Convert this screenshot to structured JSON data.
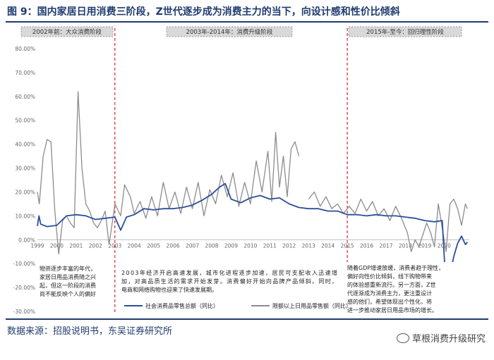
{
  "title": "图 9：国内家居日用消费三阶段，Z世代逐步成为消费主力的当下，向设计感和性价比倾斜",
  "source": "数据来源：招股说明书，东吴证券研究所",
  "watermark": "草根消费升级研究",
  "colors": {
    "title": "#1f3b6f",
    "series_retail": "#2a4f9a",
    "series_household": "#8c8c8c",
    "divider": "#d9262a",
    "stage_box": "#d9d9d9"
  },
  "stages": [
    {
      "label": "2002年前：大众消费阶段"
    },
    {
      "label": "2003年-2014年：消费升级阶段"
    },
    {
      "label": "2015年-至今：回归理性阶段"
    }
  ],
  "annotations": [
    {
      "lines": [
        "物资逐步丰富的年代，",
        "家居日用品消费随之兴",
        "起，但这一阶段的消费",
        "尚不能反映个人的偏好"
      ]
    },
    {
      "lines": [
        "2003年经济开启高速发展，城市化进程逐步加速，居民可支配收入迅速增",
        "加，对高品质生活的需求开始发芽。消费偏好开始向品牌产品倾斜。同时，",
        "电商和网络购物也迎来了快速发展期。"
      ]
    },
    {
      "lines": [
        "随着GDP增速放缓，消费者趋于理性，",
        "偏好向性价比倾斜，线下购物带来",
        "的体验感重新流行。另一方面，Z世",
        "代逐渐成为消费主力，更注重设计",
        "感的他们，希望体现出个性化，将",
        "进一步推动家居日用品市场的增长。"
      ]
    }
  ],
  "chart_data": {
    "type": "line",
    "ylim": [
      -30,
      80
    ],
    "yticks": [
      "80.00%",
      "70.00%",
      "60.00%",
      "50.00%",
      "40.00%",
      "30.00%",
      "20.00%",
      "10.00%",
      "0.00%",
      "-10.00%",
      "-20.00%",
      "-30.00%"
    ],
    "xlim": [
      1999,
      2021.3
    ],
    "xticks": [
      "1999",
      "2000",
      "2001",
      "2002",
      "2003",
      "2004",
      "2005",
      "2006",
      "2007",
      "2008",
      "2009",
      "2010",
      "2011",
      "2012",
      "2013",
      "2014",
      "2015",
      "2016",
      "2017",
      "2018",
      "2019",
      "2020"
    ],
    "dividers_x": [
      2003,
      2015
    ],
    "series": [
      {
        "name": "社会消费品零售总额（同比）",
        "points": [
          [
            1999.0,
            5.7
          ],
          [
            1999.08,
            10.0
          ],
          [
            1999.17,
            6.5
          ],
          [
            1999.5,
            5.5
          ],
          [
            2000.0,
            6.0
          ],
          [
            2000.5,
            10.0
          ],
          [
            2001.0,
            10.5
          ],
          [
            2001.5,
            10.0
          ],
          [
            2002.0,
            8.5
          ],
          [
            2002.5,
            9.0
          ],
          [
            2003.0,
            9.5
          ],
          [
            2003.3,
            4.0
          ],
          [
            2003.6,
            9.5
          ],
          [
            2004.0,
            10.5
          ],
          [
            2004.5,
            13.0
          ],
          [
            2005.0,
            12.5
          ],
          [
            2005.5,
            13.0
          ],
          [
            2006.0,
            13.0
          ],
          [
            2006.5,
            13.5
          ],
          [
            2007.0,
            14.5
          ],
          [
            2007.5,
            16.5
          ],
          [
            2008.0,
            19.0
          ],
          [
            2008.4,
            22.0
          ],
          [
            2008.7,
            23.5
          ],
          [
            2009.0,
            17.0
          ],
          [
            2009.5,
            15.5
          ],
          [
            2010.0,
            17.5
          ],
          [
            2010.5,
            18.5
          ],
          [
            2011.0,
            17.0
          ],
          [
            2011.5,
            17.5
          ],
          [
            2012.0,
            15.0
          ],
          [
            2012.5,
            13.5
          ],
          [
            2013.0,
            13.0
          ],
          [
            2013.5,
            13.0
          ],
          [
            2014.0,
            12.0
          ],
          [
            2014.5,
            12.0
          ],
          [
            2015.0,
            10.5
          ],
          [
            2015.5,
            10.5
          ],
          [
            2016.0,
            10.0
          ],
          [
            2016.5,
            10.5
          ],
          [
            2017.0,
            10.0
          ],
          [
            2017.5,
            10.0
          ],
          [
            2018.0,
            9.5
          ],
          [
            2018.5,
            9.0
          ],
          [
            2019.0,
            8.0
          ],
          [
            2019.5,
            7.5
          ],
          [
            2019.9,
            8.0
          ],
          [
            2020.1,
            -20.5
          ],
          [
            2020.3,
            -15.0
          ],
          [
            2020.5,
            -7.0
          ],
          [
            2020.7,
            -1.5
          ],
          [
            2020.9,
            1.5
          ],
          [
            2021.1,
            -2.0
          ],
          [
            2021.2,
            -1.0
          ]
        ]
      },
      {
        "name": "限额以上日用品零售额（同比）",
        "points": [
          [
            1999.0,
            20.0
          ],
          [
            1999.1,
            15.0
          ],
          [
            1999.3,
            35.0
          ],
          [
            1999.5,
            42.0
          ],
          [
            1999.7,
            41.0
          ],
          [
            1999.9,
            12.0
          ],
          [
            2000.1,
            -6.0
          ],
          [
            2000.3,
            8.0
          ],
          [
            2000.5,
            10.0
          ],
          [
            2000.7,
            7.0
          ],
          [
            2000.9,
            5.0
          ],
          [
            2001.1,
            62.0
          ],
          [
            2001.3,
            30.0
          ],
          [
            2001.5,
            15.0
          ],
          [
            2001.7,
            12.0
          ],
          [
            2001.9,
            7.0
          ],
          [
            2002.1,
            5.0
          ],
          [
            2002.3,
            8.0
          ],
          [
            2002.5,
            12.0
          ],
          [
            2002.7,
            -2.0
          ],
          [
            2002.9,
            9.0
          ],
          [
            2003.0,
            15.0
          ],
          [
            2003.3,
            10.0
          ],
          [
            2003.5,
            23.0
          ],
          [
            2003.8,
            18.0
          ],
          [
            2004.0,
            11.0
          ],
          [
            2004.3,
            16.0
          ],
          [
            2004.6,
            9.0
          ],
          [
            2004.9,
            18.0
          ],
          [
            2005.2,
            10.0
          ],
          [
            2005.5,
            24.0
          ],
          [
            2005.8,
            13.0
          ],
          [
            2006.1,
            20.0
          ],
          [
            2006.4,
            11.0
          ],
          [
            2006.7,
            22.0
          ],
          [
            2007.0,
            13.0
          ],
          [
            2007.3,
            24.0
          ],
          [
            2007.6,
            10.0
          ],
          [
            2007.9,
            21.0
          ],
          [
            2008.2,
            15.0
          ],
          [
            2008.5,
            27.0
          ],
          [
            2008.8,
            18.0
          ],
          [
            2009.1,
            28.0
          ],
          [
            2009.4,
            14.0
          ],
          [
            2009.7,
            24.0
          ],
          [
            2010.0,
            15.0
          ],
          [
            2010.3,
            33.0
          ],
          [
            2010.6,
            20.0
          ],
          [
            2010.9,
            37.0
          ],
          [
            2011.1,
            16.0
          ],
          [
            2011.3,
            45.0
          ],
          [
            2011.5,
            22.0
          ],
          [
            2011.7,
            35.0
          ],
          [
            2011.9,
            18.0
          ],
          [
            2012.1,
            38.0
          ],
          [
            2012.3,
            41.0
          ],
          [
            2012.5,
            35.0
          ]
        ]
      },
      {
        "name": "限额以上日用品零售额（同比）",
        "points": [
          [
            2013.0,
            17.0
          ],
          [
            2013.3,
            20.0
          ],
          [
            2013.6,
            14.0
          ],
          [
            2013.9,
            18.0
          ],
          [
            2014.2,
            13.0
          ],
          [
            2014.5,
            15.0
          ],
          [
            2014.8,
            11.0
          ],
          [
            2015.1,
            14.0
          ],
          [
            2015.4,
            11.0
          ],
          [
            2015.7,
            17.0
          ],
          [
            2016.0,
            12.0
          ],
          [
            2016.3,
            16.0
          ],
          [
            2016.6,
            10.0
          ],
          [
            2016.9,
            13.0
          ],
          [
            2017.2,
            8.0
          ],
          [
            2017.5,
            14.0
          ],
          [
            2017.8,
            9.0
          ],
          [
            2018.1,
            3.0
          ],
          [
            2018.3,
            -5.0
          ],
          [
            2018.5,
            0.0
          ],
          [
            2018.7,
            -3.0
          ],
          [
            2018.9,
            2.0
          ],
          [
            2019.1,
            7.0
          ],
          [
            2019.3,
            3.0
          ],
          [
            2019.5,
            -3.0
          ],
          [
            2019.7,
            15.0
          ],
          [
            2019.9,
            5.0
          ],
          [
            2020.1,
            -5.0
          ],
          [
            2020.3,
            15.0
          ],
          [
            2020.5,
            17.0
          ],
          [
            2020.7,
            13.0
          ],
          [
            2020.9,
            6.0
          ],
          [
            2021.1,
            15.0
          ],
          [
            2021.2,
            13.0
          ]
        ]
      }
    ],
    "legend": [
      {
        "label": "社会消费品零售总额（同比）"
      },
      {
        "label": "限额以上日用品零售额（同比）"
      }
    ]
  }
}
